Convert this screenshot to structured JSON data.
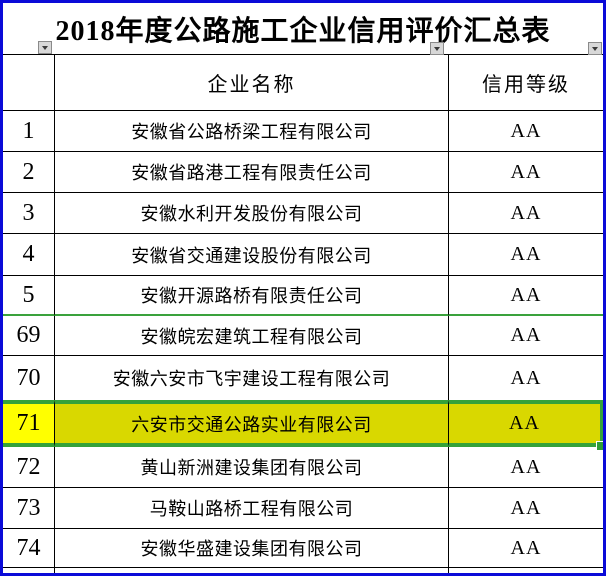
{
  "title": "2018年度公路施工企业信用评价汇总表",
  "header": {
    "name_col": "企业名称",
    "rating_col": "信用等级"
  },
  "rows": [
    {
      "num": "1",
      "name": "安徽省公路桥梁工程有限公司",
      "rating": "AA",
      "selected": false,
      "divider_after": false
    },
    {
      "num": "2",
      "name": "安徽省路港工程有限责任公司",
      "rating": "AA",
      "selected": false,
      "divider_after": false
    },
    {
      "num": "3",
      "name": "安徽水利开发股份有限公司",
      "rating": "AA",
      "selected": false,
      "divider_after": false
    },
    {
      "num": "4",
      "name": "安徽省交通建设股份有限公司",
      "rating": "AA",
      "selected": false,
      "divider_after": false
    },
    {
      "num": "5",
      "name": "安徽开源路桥有限责任公司",
      "rating": "AA",
      "selected": false,
      "divider_after": true
    },
    {
      "num": "69",
      "name": "安徽皖宏建筑工程有限公司",
      "rating": "AA",
      "selected": false,
      "divider_after": false
    },
    {
      "num": "70",
      "name": "安徽六安市飞宇建设工程有限公司",
      "rating": "AA",
      "selected": false,
      "divider_after": false
    },
    {
      "num": "71",
      "name": "六安市交通公路实业有限公司",
      "rating": "AA",
      "selected": true,
      "divider_after": false
    },
    {
      "num": "72",
      "name": "黄山新洲建设集团有限公司",
      "rating": "AA",
      "selected": false,
      "divider_after": false
    },
    {
      "num": "73",
      "name": "马鞍山路桥工程有限公司",
      "rating": "AA",
      "selected": false,
      "divider_after": false
    },
    {
      "num": "74",
      "name": "安徽华盛建设集团有限公司",
      "rating": "AA",
      "selected": false,
      "divider_after": false
    }
  ],
  "icons": {
    "filter_dropdown": "triangle-down"
  },
  "colors": {
    "frame_blue": "#0a0ad8",
    "grid_black": "#000000",
    "selection_green": "#35a23a",
    "hidden_rows_divider_green": "#3aa23c",
    "active_cell_yellow": "#ffff00",
    "selected_cell_yellow": "#d9d800",
    "filter_button_bg": "#d8d8d8",
    "filter_button_border": "#8a8a8a"
  }
}
